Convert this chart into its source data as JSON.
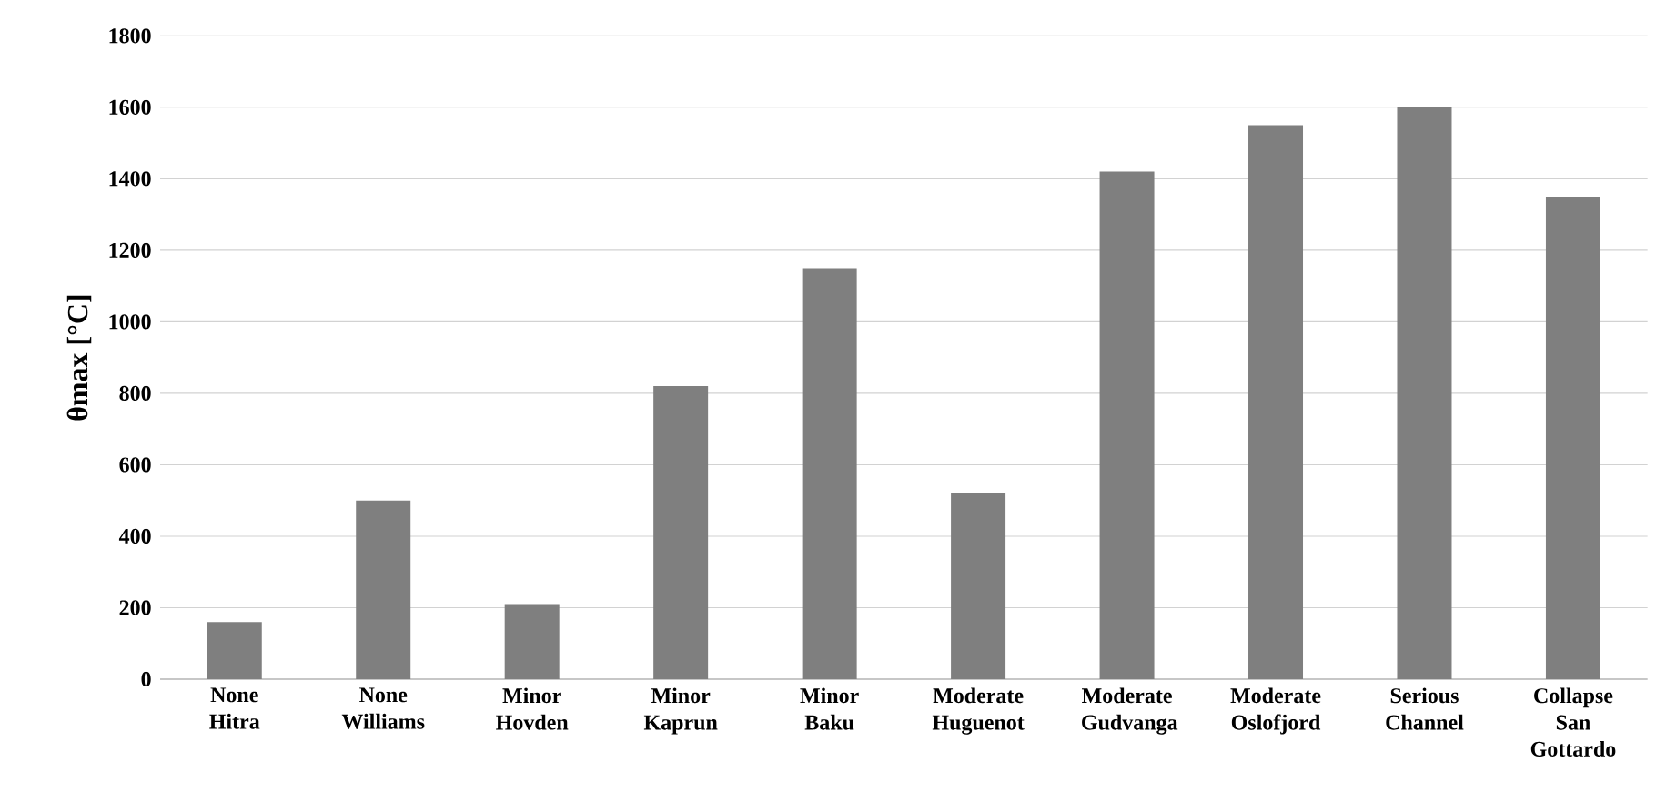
{
  "chart_data": {
    "type": "bar",
    "ylabel": "θmax [°C]",
    "categories": [
      "None Hitra",
      "None Williams",
      "Minor Hovden",
      "Minor Kaprun",
      "Minor Baku",
      "Moderate Huguenot",
      "Moderate Gudvanga",
      "Moderate Oslofjord",
      "Serious Channel",
      "Collapse San Gottardo"
    ],
    "values": [
      160,
      500,
      210,
      820,
      1150,
      520,
      1420,
      1550,
      1600,
      1350
    ],
    "color": "#7f7f7f",
    "ylim": [
      0,
      1800
    ],
    "yticks": [
      0,
      200,
      400,
      600,
      800,
      1000,
      1200,
      1400,
      1600,
      1800
    ],
    "grid": "y"
  }
}
